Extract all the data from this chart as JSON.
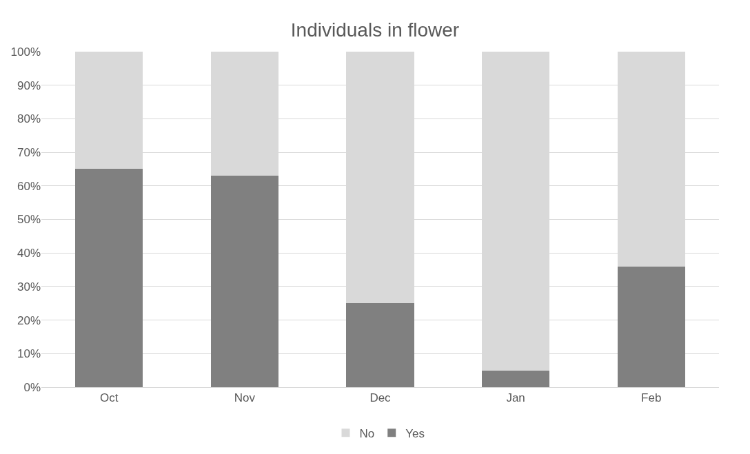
{
  "chart_data": {
    "type": "bar",
    "title": "Individuals in flower",
    "stacked": true,
    "categories": [
      "Oct",
      "Nov",
      "Dec",
      "Jan",
      "Feb"
    ],
    "series": [
      {
        "name": "Yes",
        "color": "#808080",
        "values": [
          65,
          63,
          25,
          5,
          36
        ]
      },
      {
        "name": "No",
        "color": "#d9d9d9",
        "values": [
          35,
          37,
          75,
          95,
          64
        ]
      }
    ],
    "ylim": [
      0,
      100
    ],
    "yticks": [
      {
        "value": 0,
        "label": "0%"
      },
      {
        "value": 10,
        "label": "10%"
      },
      {
        "value": 20,
        "label": "20%"
      },
      {
        "value": 30,
        "label": "30%"
      },
      {
        "value": 40,
        "label": "40%"
      },
      {
        "value": 50,
        "label": "50%"
      },
      {
        "value": 60,
        "label": "60%"
      },
      {
        "value": 70,
        "label": "70%"
      },
      {
        "value": 80,
        "label": "80%"
      },
      {
        "value": 90,
        "label": "90%"
      },
      {
        "value": 100,
        "label": "100%"
      }
    ],
    "grid": "y",
    "legend": "bottom"
  }
}
